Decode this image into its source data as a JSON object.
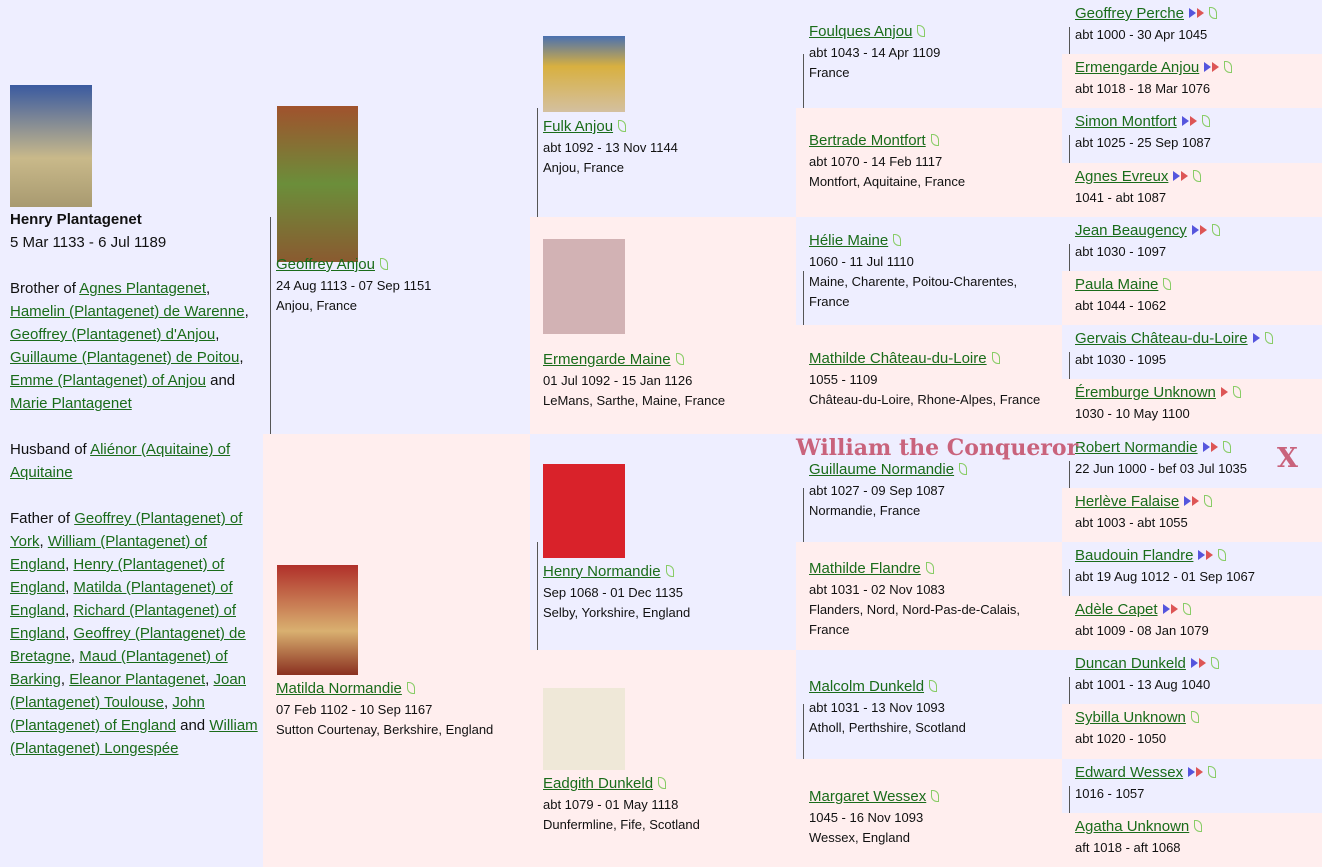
{
  "root": {
    "name": "Henry Plantagenet",
    "dates": "5 Mar 1133 - 6 Jul 1189",
    "relations": [
      {
        "prefix": "Brother of",
        "separator": ",",
        "conjunction": "and",
        "people": [
          "Agnes Plantagenet",
          "Hamelin (Plantagenet) de Warenne",
          "Geoffrey (Plantagenet) d'Anjou",
          "Guillaume (Plantagenet) de Poitou",
          "Emme (Plantagenet) of Anjou",
          "Marie Plantagenet"
        ]
      },
      {
        "prefix": "Husband of",
        "separator": ",",
        "conjunction": "and",
        "people": [
          "Aliénor (Aquitaine) of Aquitaine"
        ]
      },
      {
        "prefix": "Father of",
        "separator": ",",
        "conjunction": "and",
        "people": [
          "Geoffrey (Plantagenet) of York",
          "William (Plantagenet) of England",
          "Henry (Plantagenet) of England",
          "Matilda (Plantagenet) of England",
          "Richard (Plantagenet) of England",
          "Geoffrey (Plantagenet) de Bretagne",
          "Maud (Plantagenet) of Barking",
          "Eleanor Plantagenet",
          "Joan (Plantagenet) Toulouse",
          "John (Plantagenet) of England",
          "William (Plantagenet) Longespée"
        ]
      }
    ]
  },
  "generations": [
    [
      {
        "name": "Geoffrey Anjou",
        "dates": "24 Aug 1113 - 07 Sep 1151",
        "place": "Anjou, France"
      },
      {
        "name": "Matilda Normandie",
        "dates": "07 Feb 1102 - 10 Sep 1167",
        "place": "Sutton Courtenay, Berkshire, England"
      }
    ],
    [
      {
        "name": "Fulk Anjou",
        "dates": "abt 1092 - 13 Nov 1144",
        "place": "Anjou, France"
      },
      {
        "name": "Ermengarde Maine",
        "dates": "01 Jul 1092 - 15 Jan 1126",
        "place": "LeMans, Sarthe, Maine, France"
      },
      {
        "name": "Henry Normandie",
        "dates": "Sep 1068 - 01 Dec 1135",
        "place": "Selby, Yorkshire, England"
      },
      {
        "name": "Eadgith Dunkeld",
        "dates": "abt 1079 - 01 May 1118",
        "place": "Dunfermline, Fife, Scotland"
      }
    ],
    [
      {
        "name": "Foulques Anjou",
        "dates": "abt 1043 - 14 Apr 1109",
        "place": "France"
      },
      {
        "name": "Bertrade Montfort",
        "dates": "abt 1070 - 14 Feb 1117",
        "place": "Montfort, Aquitaine, France"
      },
      {
        "name": "Hélie Maine",
        "dates": "1060 - 11 Jul 1110",
        "place": "Maine, Charente, Poitou-Charentes, France"
      },
      {
        "name": "Mathilde Château-du-Loire",
        "dates": "1055 - 1109",
        "place": "Château-du-Loire, Rhone-Alpes, France"
      },
      {
        "name": "Guillaume Normandie",
        "dates": "abt 1027 - 09 Sep 1087",
        "place": "Normandie, France"
      },
      {
        "name": "Mathilde Flandre",
        "dates": "abt 1031 - 02 Nov 1083",
        "place": "Flanders, Nord, Nord-Pas-de-Calais, France"
      },
      {
        "name": "Malcolm Dunkeld",
        "dates": "abt 1031 - 13 Nov 1093",
        "place": "Atholl, Perthshire, Scotland"
      },
      {
        "name": "Margaret Wessex",
        "dates": "1045 - 16 Nov 1093",
        "place": "Wessex, England"
      }
    ],
    [
      {
        "name": "Geoffrey Perche",
        "dates": "abt 1000 - 30 Apr 1045"
      },
      {
        "name": "Ermengarde Anjou",
        "dates": "abt 1018 - 18 Mar 1076"
      },
      {
        "name": "Simon Montfort",
        "dates": "abt 1025 - 25 Sep 1087"
      },
      {
        "name": "Agnes Evreux",
        "dates": "1041 - abt 1087"
      },
      {
        "name": "Jean Beaugency",
        "dates": "abt 1030 - 1097"
      },
      {
        "name": "Paula Maine",
        "dates": "abt 1044 - 1062"
      },
      {
        "name": "Gervais Château-du-Loire",
        "dates": "abt 1030 - 1095"
      },
      {
        "name": "Éremburge Unknown",
        "dates": "1030 - 10 May 1100"
      },
      {
        "name": "Robert Normandie",
        "dates": "22 Jun 1000 - bef 03 Jul 1035"
      },
      {
        "name": "Herlève Falaise",
        "dates": "abt 1003 - abt 1055"
      },
      {
        "name": "Baudouin Flandre",
        "dates": "abt 19 Aug 1012 - 01 Sep 1067"
      },
      {
        "name": "Adèle Capet",
        "dates": "abt 1009 - 08 Jan 1079"
      },
      {
        "name": "Duncan Dunkeld",
        "dates": "abt 1001 - 13 Aug 1040"
      },
      {
        "name": "Sybilla Unknown",
        "dates": "abt 1020 - 1050"
      },
      {
        "name": "Edward Wessex",
        "dates": "1016 - 1057"
      },
      {
        "name": "Agatha Unknown",
        "dates": "aft 1018 - aft 1068"
      }
    ]
  ],
  "annotations": {
    "label": "William the Conqueror",
    "mark": "X"
  }
}
